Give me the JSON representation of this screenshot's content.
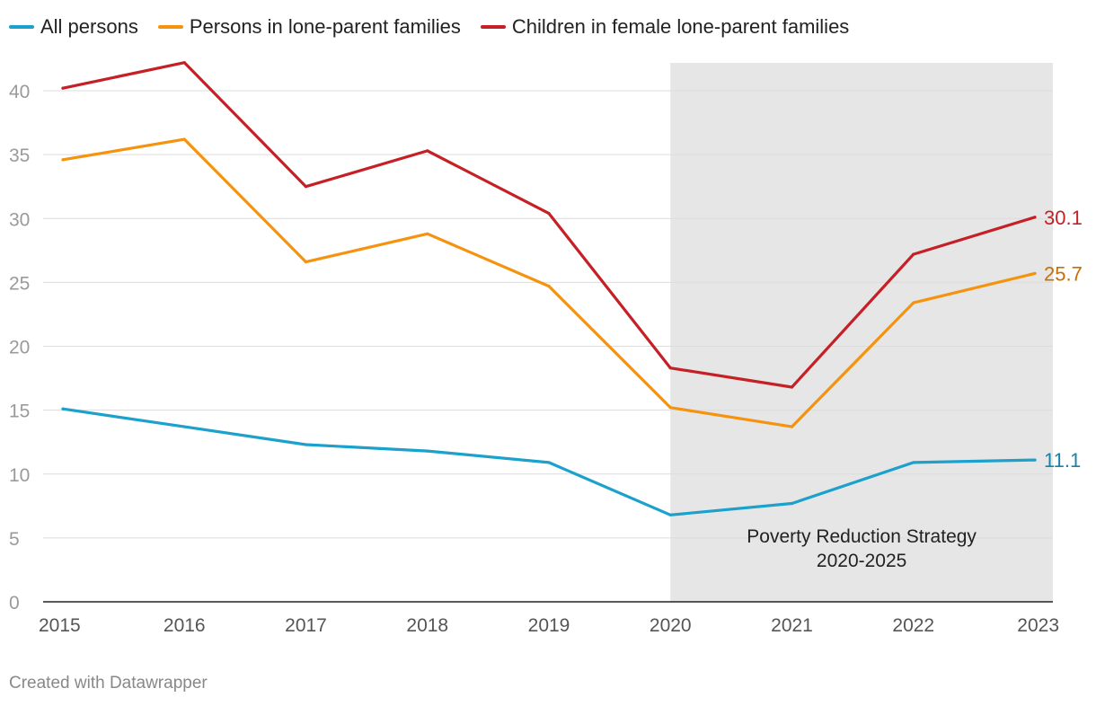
{
  "chart_data": {
    "type": "line",
    "title": "",
    "xlabel": "",
    "ylabel": "",
    "x": [
      2015,
      2016,
      2017,
      2018,
      2019,
      2020,
      2021,
      2022,
      2023
    ],
    "ylim": [
      0,
      40
    ],
    "yticks": [
      0,
      5,
      10,
      15,
      20,
      25,
      30,
      35,
      40
    ],
    "grid": true,
    "legend_position": "top-left",
    "series": [
      {
        "name": "All persons",
        "color": "#1ba1cc",
        "label_color": "#1783a6",
        "values": [
          15.1,
          13.7,
          12.3,
          11.8,
          10.9,
          6.8,
          7.7,
          10.9,
          11.1
        ],
        "end_label": "11.1"
      },
      {
        "name": "Persons in lone-parent families",
        "color": "#f5930f",
        "label_color": "#c76e06",
        "values": [
          34.6,
          36.2,
          26.6,
          28.8,
          24.7,
          15.2,
          13.7,
          23.4,
          25.7
        ],
        "end_label": "25.7"
      },
      {
        "name": "Children in female lone-parent families",
        "color": "#c52026",
        "label_color": "#c52026",
        "values": [
          40.2,
          42.2,
          32.5,
          35.3,
          30.4,
          18.3,
          16.8,
          27.2,
          30.1
        ],
        "end_label": "30.1"
      }
    ],
    "annotations": [
      {
        "type": "range",
        "x_start": 2020,
        "x_end": 2023,
        "color": "#e6e6e6",
        "text_lines": [
          "Poverty Reduction Strategy",
          "2020-2025"
        ]
      }
    ]
  },
  "footer": {
    "credit": "Created with Datawrapper"
  }
}
